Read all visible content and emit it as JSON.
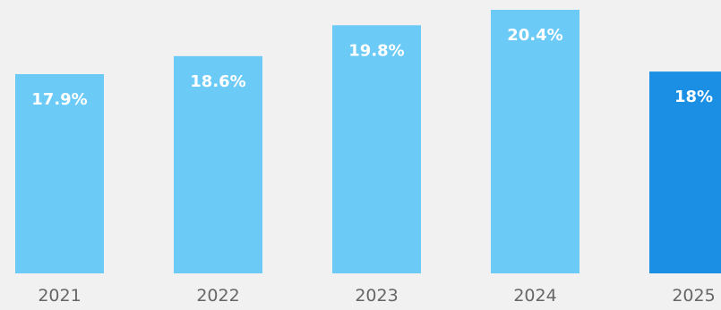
{
  "chart_data": {
    "type": "bar",
    "title": "",
    "xlabel": "",
    "ylabel": "",
    "categories": [
      "2021",
      "2022",
      "2023",
      "2024",
      "2025"
    ],
    "values": [
      17.9,
      18.6,
      19.8,
      20.4,
      18
    ],
    "value_labels": [
      "17.9%",
      "18.6%",
      "19.8%",
      "20.4%",
      "18%"
    ],
    "unit": "%",
    "ylim": [
      0,
      20.4
    ],
    "grid": false,
    "legend": "none",
    "highlight_index": 4,
    "colors": {
      "bar": "#6ccaf6",
      "highlight": "#1a8fe3",
      "bar_label": "#ffffff",
      "tick_label": "#666666",
      "background": "#f1f1f2"
    }
  }
}
